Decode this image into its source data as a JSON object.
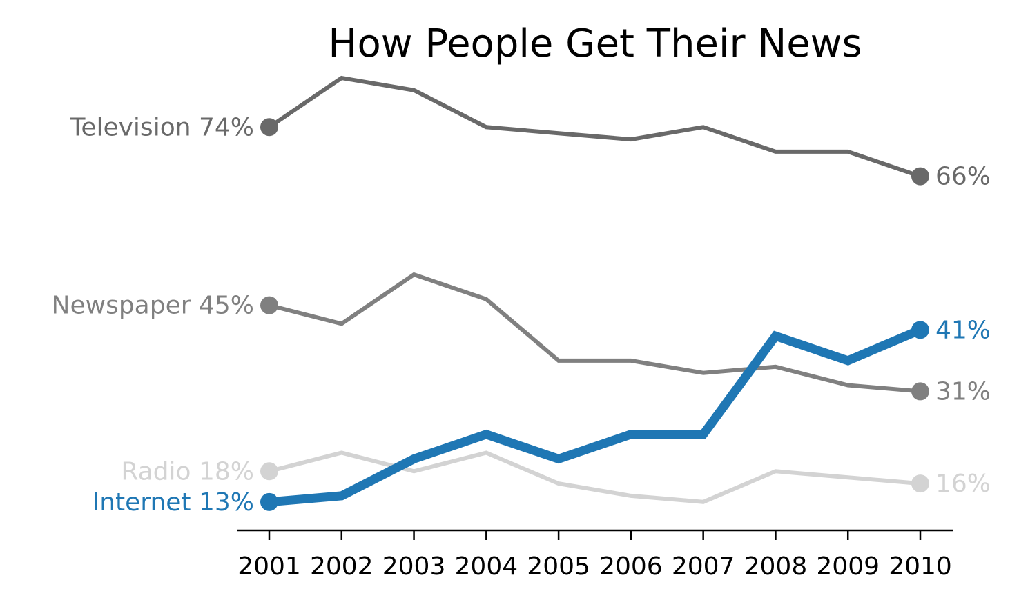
{
  "chart_data": {
    "type": "line",
    "title": "How People Get Their News",
    "xlabel": "",
    "ylabel": "",
    "x": [
      2001,
      2002,
      2003,
      2004,
      2005,
      2006,
      2007,
      2008,
      2009,
      2010
    ],
    "ylim": [
      9.5,
      82
    ],
    "grid": false,
    "legend": "none",
    "series": [
      {
        "name": "Television",
        "start_label": "Television 74%",
        "end_label": "66%",
        "color": "#696969",
        "values": [
          74,
          82,
          80,
          74,
          73,
          72,
          74,
          70,
          70,
          66
        ]
      },
      {
        "name": "Newspaper",
        "start_label": "Newspaper 45%",
        "end_label": "31%",
        "color": "#808080",
        "values": [
          45,
          42,
          50,
          46,
          36,
          36,
          34,
          35,
          32,
          31
        ]
      },
      {
        "name": "Radio",
        "start_label": "Radio 18%",
        "end_label": "16%",
        "color": "#d3d3d3",
        "values": [
          18,
          21,
          18,
          21,
          16,
          14,
          13,
          18,
          17,
          16
        ]
      },
      {
        "name": "Internet",
        "start_label": "Internet 13%",
        "end_label": "41%",
        "color": "#1f77b4",
        "values": [
          13,
          14,
          20,
          24,
          20,
          24,
          24,
          40,
          36,
          41
        ]
      }
    ]
  }
}
